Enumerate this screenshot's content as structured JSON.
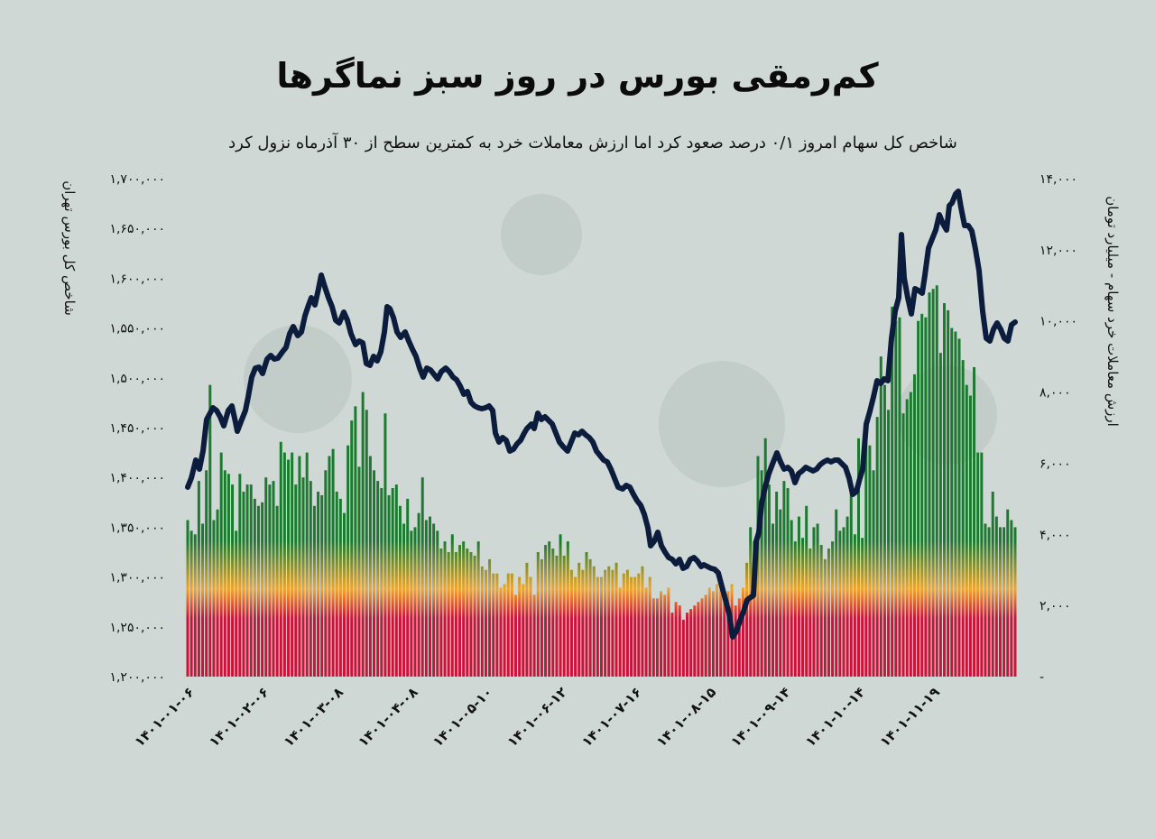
{
  "title": "کم‌رمقی بورس در روز سبز نماگرها",
  "subtitle": "شاخص کل سهام امروز ۰/۱ درصد صعود کرد اما ارزش معاملات خرد به کمترین سطح از ۳۰ آذرماه نزول کرد",
  "colors": {
    "background": "#cfd8d5",
    "line": "#0b1c3d",
    "bar_low": "#cc1237",
    "bar_mid": "#f2a52a",
    "bar_high": "#1a7a2e"
  },
  "chart_data": {
    "type": "bar+line",
    "left_axis_title": "شاخص کل بورس تهران",
    "right_axis_title": "ارزش معاملات خرد سهام - میلیارد تومان",
    "left_ticks": [
      "۱,۷۰۰,۰۰۰",
      "۱,۶۵۰,۰۰۰",
      "۱,۶۰۰,۰۰۰",
      "۱,۵۵۰,۰۰۰",
      "۱,۵۰۰,۰۰۰",
      "۱,۴۵۰,۰۰۰",
      "۱,۴۰۰,۰۰۰",
      "۱,۳۵۰,۰۰۰",
      "۱,۳۰۰,۰۰۰",
      "۱,۲۵۰,۰۰۰",
      "۱,۲۰۰,۰۰۰"
    ],
    "right_ticks": [
      "۱۴,۰۰۰",
      "۱۲,۰۰۰",
      "۱۰,۰۰۰",
      "۸,۰۰۰",
      "۶,۰۰۰",
      "۴,۰۰۰",
      "۲,۰۰۰",
      "-"
    ],
    "left_ylim": [
      1200000,
      1700000
    ],
    "right_ylim": [
      0,
      14000
    ],
    "x_tick_labels": [
      "۱۴۰۱-۰۱-۰۶",
      "۱۴۰۱-۰۲-۰۶",
      "۱۴۰۱-۰۳-۰۸",
      "۱۴۰۱-۰۴-۰۸",
      "۱۴۰۱-۰۵-۱۰",
      "۱۴۰۱-۰۶-۱۲",
      "۱۴۰۱-۰۷-۱۶",
      "۱۴۰۱-۰۸-۱۵",
      "۱۴۰۱-۰۹-۱۴",
      "۱۴۰۱-۱۰-۱۴",
      "۱۴۰۱-۱۱-۱۹"
    ],
    "x_tick_index": [
      0,
      20,
      40,
      60,
      80,
      100,
      120,
      140,
      160,
      180,
      200
    ],
    "bar_values": [
      4400,
      4100,
      4000,
      5500,
      4300,
      5800,
      8200,
      4400,
      4700,
      6300,
      5800,
      5700,
      5400,
      4100,
      5700,
      5200,
      5400,
      5400,
      5000,
      4800,
      4900,
      5600,
      5400,
      5500,
      4800,
      6600,
      6300,
      6100,
      6300,
      5400,
      6200,
      5600,
      6300,
      5500,
      4800,
      5200,
      5100,
      5800,
      6200,
      6400,
      5200,
      5000,
      4600,
      6500,
      7200,
      7600,
      5900,
      8000,
      7500,
      6200,
      5800,
      5500,
      5300,
      7400,
      5100,
      5300,
      5400,
      4800,
      4300,
      5000,
      4100,
      4200,
      4600,
      5600,
      4400,
      4500,
      4300,
      4100,
      3600,
      3800,
      3500,
      4000,
      3500,
      3700,
      3800,
      3600,
      3500,
      3400,
      3800,
      3100,
      3000,
      3300,
      2900,
      2900,
      2500,
      2600,
      2900,
      2900,
      2300,
      2800,
      2600,
      3200,
      2800,
      2300,
      3500,
      3300,
      3700,
      3800,
      3600,
      3400,
      4000,
      3400,
      3800,
      3000,
      2800,
      3200,
      3000,
      3500,
      3300,
      3100,
      2800,
      2800,
      3000,
      3100,
      3000,
      3200,
      2500,
      2900,
      3000,
      2800,
      2800,
      2900,
      3100,
      2500,
      2800,
      2200,
      2200,
      2400,
      2300,
      2500,
      1800,
      2100,
      2000,
      1600,
      1800,
      1900,
      2000,
      2100,
      2200,
      2300,
      2500,
      2400,
      2600,
      2600,
      2200,
      2400,
      2600,
      2000,
      2200,
      2500,
      3200,
      4200,
      3800,
      6200,
      5800,
      6700,
      5400,
      4300,
      5200,
      4700,
      5500,
      5300,
      4400,
      3800,
      4500,
      3900,
      4800,
      3600,
      4200,
      4300,
      3700,
      3300,
      3600,
      3800,
      4700,
      4100,
      4200,
      4500,
      5300,
      4000,
      6700,
      3900,
      7000,
      6500,
      5800,
      7300,
      9000,
      8200,
      7500,
      10400,
      10000,
      10100,
      7400,
      7800,
      8000,
      8500,
      10000,
      10200,
      10100,
      10800,
      10900,
      11000,
      9100,
      10500,
      10300,
      9800,
      9700,
      9500,
      8900,
      8200,
      7900,
      8700,
      6300,
      6300,
      4300,
      4200,
      5200,
      4500,
      4200,
      4200,
      4700,
      4400,
      4200
    ]
  }
}
